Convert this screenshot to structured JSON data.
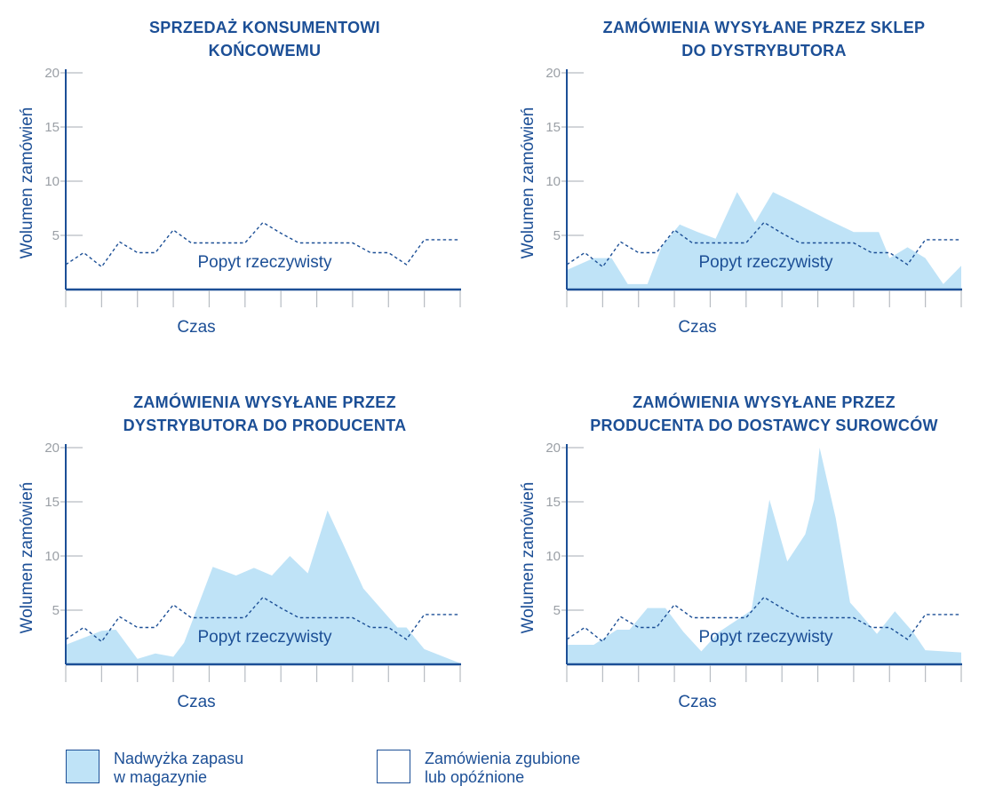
{
  "colors": {
    "accent": "#1c4f96",
    "fill": "#bfe3f7",
    "grid": "#b7bcc2",
    "tick_label": "#9a9fa5",
    "demand_line": "#1c4f96"
  },
  "demand_label": "Popyt rzeczywisty",
  "chart_data": [
    {
      "type": "area",
      "title_lines": [
        "SPRZEDAŻ KONSUMENTOWI",
        "KOŃCOWEMU"
      ],
      "xlabel": "Czas",
      "ylabel": "Wolumen zamówień",
      "ylim": [
        0,
        20
      ],
      "yticks": [
        5,
        10,
        15,
        20
      ],
      "xlim": [
        0,
        22
      ],
      "x_tick_count": 12,
      "series": [
        {
          "name": "Popyt rzeczywisty",
          "style": "dashed",
          "x": [
            0,
            1,
            2,
            3,
            4,
            5,
            6,
            7,
            8,
            9,
            10,
            11,
            12,
            13,
            14,
            15,
            16,
            17,
            18,
            19,
            20,
            21,
            22
          ],
          "values": [
            2.3,
            3.4,
            2.1,
            4.4,
            3.4,
            3.4,
            5.5,
            4.3,
            4.3,
            4.3,
            4.3,
            6.2,
            5.2,
            4.3,
            4.3,
            4.3,
            4.3,
            3.4,
            3.4,
            2.3,
            4.6,
            4.6,
            4.6
          ]
        }
      ]
    },
    {
      "type": "area",
      "title_lines": [
        "ZAMÓWIENIA WYSYŁANE PRZEZ SKLEP",
        "DO DYSTRYBUTORA"
      ],
      "xlabel": "Czas",
      "ylabel": "Wolumen zamówień",
      "ylim": [
        0,
        20
      ],
      "yticks": [
        5,
        10,
        15,
        20
      ],
      "xlim": [
        0,
        22
      ],
      "x_tick_count": 12,
      "series": [
        {
          "name": "Nadwyżka zapasu w magazynie",
          "style": "fill",
          "x": [
            0,
            1.5,
            2.5,
            3.4,
            4.5,
            5.3,
            6.3,
            7.3,
            8.3,
            9.5,
            10.5,
            11.5,
            12.5,
            14.5,
            16,
            17.4,
            18,
            19,
            20,
            21,
            22
          ],
          "values": [
            1.8,
            2.9,
            2.9,
            0.5,
            0.5,
            4,
            6,
            5.3,
            4.7,
            9,
            6.2,
            9,
            8.2,
            6.5,
            5.3,
            5.3,
            2.9,
            3.9,
            2.9,
            0.5,
            2.2
          ]
        },
        {
          "name": "Popyt rzeczywisty",
          "style": "dashed",
          "x": [
            0,
            1,
            2,
            3,
            4,
            5,
            6,
            7,
            8,
            9,
            10,
            11,
            12,
            13,
            14,
            15,
            16,
            17,
            18,
            19,
            20,
            21,
            22
          ],
          "values": [
            2.3,
            3.4,
            2.1,
            4.4,
            3.4,
            3.4,
            5.5,
            4.3,
            4.3,
            4.3,
            4.3,
            6.2,
            5.2,
            4.3,
            4.3,
            4.3,
            4.3,
            3.4,
            3.4,
            2.3,
            4.6,
            4.6,
            4.6
          ]
        }
      ]
    },
    {
      "type": "area",
      "title_lines": [
        "ZAMÓWIENIA WYSYŁANE PRZEZ",
        "DYSTRYBUTORA DO PRODUCENTA"
      ],
      "xlabel": "Czas",
      "ylabel": "Wolumen zamówień",
      "ylim": [
        0,
        20
      ],
      "yticks": [
        5,
        10,
        15,
        20
      ],
      "xlim": [
        0,
        22
      ],
      "x_tick_count": 12,
      "series": [
        {
          "name": "Nadwyżka zapasu w magazynie",
          "style": "fill",
          "x": [
            0,
            2,
            2.8,
            4,
            5,
            6,
            6.6,
            8.2,
            9.5,
            10.5,
            11.5,
            12.5,
            13.5,
            14.6,
            15.5,
            16.6,
            18.5,
            19,
            20,
            22
          ],
          "values": [
            1.8,
            3.1,
            3.2,
            0.5,
            1,
            0.7,
            2,
            9,
            8.2,
            8.9,
            8.2,
            10,
            8.4,
            14.2,
            11,
            7,
            3.4,
            3.4,
            1.4,
            0.1
          ]
        },
        {
          "name": "Popyt rzeczywisty",
          "style": "dashed",
          "x": [
            0,
            1,
            2,
            3,
            4,
            5,
            6,
            7,
            8,
            9,
            10,
            11,
            12,
            13,
            14,
            15,
            16,
            17,
            18,
            19,
            20,
            21,
            22
          ],
          "values": [
            2.3,
            3.4,
            2.1,
            4.4,
            3.4,
            3.4,
            5.5,
            4.3,
            4.3,
            4.3,
            4.3,
            6.2,
            5.2,
            4.3,
            4.3,
            4.3,
            4.3,
            3.4,
            3.4,
            2.3,
            4.6,
            4.6,
            4.6
          ]
        }
      ]
    },
    {
      "type": "area",
      "title_lines": [
        "ZAMÓWIENIA WYSYŁANE PRZEZ",
        "PRODUCENTA DO DOSTAWCY SUROWCÓW"
      ],
      "xlabel": "Czas",
      "ylabel": "Wolumen zamówień",
      "ylim": [
        0,
        20
      ],
      "yticks": [
        5,
        10,
        15,
        20
      ],
      "xlim": [
        0,
        22
      ],
      "x_tick_count": 12,
      "series": [
        {
          "name": "Nadwyżka zapasu w magazynie",
          "style": "fill",
          "x": [
            0,
            1.5,
            2.8,
            3.5,
            4.5,
            5.5,
            6.5,
            7.5,
            8.5,
            9.5,
            10.3,
            11.3,
            12.3,
            13.3,
            13.8,
            14.1,
            15,
            15.8,
            16.4,
            17.3,
            18.3,
            19.3,
            20,
            22
          ],
          "values": [
            1.8,
            1.8,
            3.2,
            3.2,
            5.2,
            5.2,
            3,
            1.2,
            3,
            4.1,
            5,
            15.2,
            9.5,
            12,
            15.2,
            20,
            13.5,
            5.7,
            4.6,
            2.8,
            4.9,
            3,
            1.3,
            1.1
          ]
        },
        {
          "name": "Popyt rzeczywisty",
          "style": "dashed",
          "x": [
            0,
            1,
            2,
            3,
            4,
            5,
            6,
            7,
            8,
            9,
            10,
            11,
            12,
            13,
            14,
            15,
            16,
            17,
            18,
            19,
            20,
            21,
            22
          ],
          "values": [
            2.3,
            3.4,
            2.1,
            4.4,
            3.4,
            3.4,
            5.5,
            4.3,
            4.3,
            4.3,
            4.3,
            6.2,
            5.2,
            4.3,
            4.3,
            4.3,
            4.3,
            3.4,
            3.4,
            2.3,
            4.6,
            4.6,
            4.6
          ]
        }
      ]
    }
  ],
  "legend": [
    {
      "kind": "filled",
      "lines": [
        "Nadwyżka zapasu",
        "w magazynie"
      ]
    },
    {
      "kind": "empty",
      "lines": [
        "Zamówienia zgubione",
        "lub opóźnione"
      ]
    }
  ]
}
